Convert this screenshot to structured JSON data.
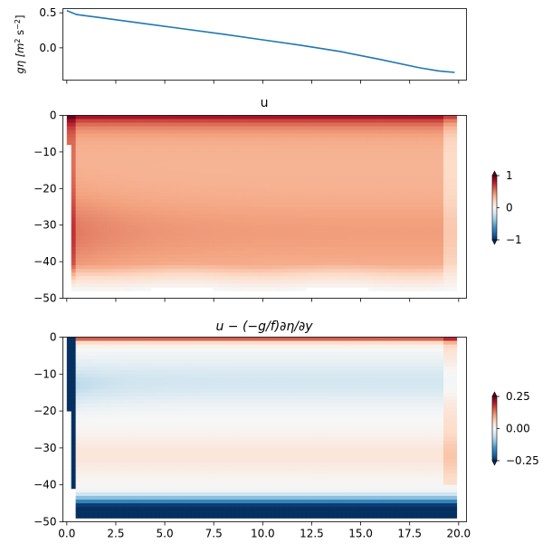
{
  "chart_data": [
    {
      "type": "line",
      "ylabel": "gη [m² s⁻²]",
      "ylabel_parts": {
        "main": "gη [m",
        "exp1": "2",
        "mid": " s",
        "exp2": "−2",
        "end": "]"
      },
      "xlim": [
        -0.2,
        20.4
      ],
      "ylim": [
        -0.46,
        0.56
      ],
      "yticks": [
        0.5,
        0.0
      ],
      "ytick_labels": [
        "0.5",
        "0.0"
      ],
      "x_tick_labels_shown": false,
      "color": "#1f77b4",
      "x": [
        0,
        0.5,
        2,
        4,
        6,
        8,
        10,
        12,
        14,
        16,
        18,
        19,
        19.8
      ],
      "y": [
        0.53,
        0.475,
        0.42,
        0.345,
        0.27,
        0.195,
        0.115,
        0.035,
        -0.055,
        -0.165,
        -0.285,
        -0.33,
        -0.35
      ]
    },
    {
      "type": "heatmap",
      "title": "u",
      "colormap": "RdBu_r",
      "xlim": [
        -0.2,
        20.4
      ],
      "ylim": [
        -50,
        0
      ],
      "yticks": [
        0,
        -10,
        -20,
        -30,
        -40,
        -50
      ],
      "ytick_labels": [
        "0",
        "−10",
        "−20",
        "−30",
        "−40",
        "−50"
      ],
      "x_tick_labels_shown": false,
      "colorbar": {
        "range": [
          -1,
          1
        ],
        "ticks": [
          1,
          0,
          -1
        ],
        "tick_labels": [
          "1",
          "0",
          "−1"
        ]
      },
      "field": "interior ≈ 0.3–0.6, strongest near surface (≈1) and at depth ~30–35; white (0) below ≈ −48 and at x > 19.8"
    },
    {
      "type": "heatmap",
      "title": "u − (−g/f)∂η/∂y",
      "colormap": "RdBu_r",
      "xlim": [
        -0.2,
        20.4
      ],
      "ylim": [
        -50,
        0
      ],
      "yticks": [
        0,
        -10,
        -20,
        -30,
        -40,
        -50
      ],
      "ytick_labels": [
        "0",
        "−10",
        "−20",
        "−30",
        "−40",
        "−50"
      ],
      "xticks": [
        0,
        2.5,
        5,
        7.5,
        10,
        12.5,
        15,
        17.5,
        20
      ],
      "xtick_labels": [
        "0.0",
        "2.5",
        "5.0",
        "7.5",
        "10.0",
        "12.5",
        "15.0",
        "17.5",
        "20.0"
      ],
      "colorbar": {
        "range": [
          -0.25,
          0.25
        ],
        "ticks": [
          0.25,
          0,
          -0.25
        ],
        "tick_labels": [
          "0.25",
          "0.00",
          "−0.25"
        ]
      },
      "field": "positive (red) within 2 m of surface, weak negative (blue) ~−5 to −20, weak positive ~−25 to −40, strong negative below −42; strong negative near x = 0"
    }
  ]
}
